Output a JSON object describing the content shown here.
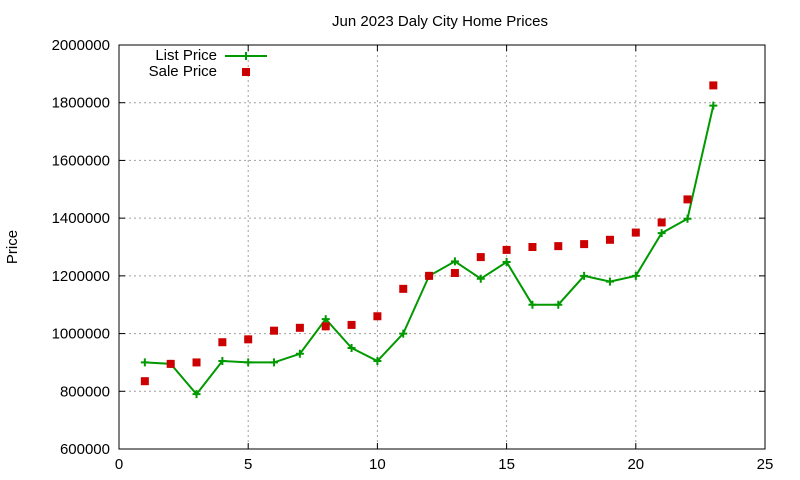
{
  "chart_data": {
    "type": "line",
    "title": "Jun 2023 Daly City Home Prices",
    "xlabel": "",
    "ylabel": "Price",
    "xlim": [
      0,
      25
    ],
    "ylim": [
      600000,
      2000000
    ],
    "xticks": [
      0,
      5,
      10,
      15,
      20,
      25
    ],
    "yticks": [
      600000,
      800000,
      1000000,
      1200000,
      1400000,
      1600000,
      1800000,
      2000000
    ],
    "grid": true,
    "legend_position": "top-left",
    "series": [
      {
        "name": "List Price",
        "style": "line-with-plus-markers",
        "color": "#009900",
        "x": [
          1,
          2,
          3,
          4,
          5,
          6,
          7,
          8,
          9,
          10,
          11,
          12,
          13,
          14,
          15,
          16,
          17,
          18,
          19,
          20,
          21,
          22,
          23
        ],
        "y": [
          900000,
          895000,
          790000,
          905000,
          900000,
          900000,
          930000,
          1050000,
          950000,
          905000,
          1000000,
          1200000,
          1250000,
          1190000,
          1248000,
          1100000,
          1100000,
          1200000,
          1180000,
          1200000,
          1348000,
          1398000,
          1790000
        ]
      },
      {
        "name": "Sale Price",
        "style": "square-markers",
        "color": "#cc0000",
        "x": [
          1,
          2,
          3,
          4,
          5,
          6,
          7,
          8,
          9,
          10,
          11,
          12,
          13,
          14,
          15,
          16,
          17,
          18,
          19,
          20,
          21,
          22,
          23
        ],
        "y": [
          835000,
          895000,
          900000,
          970000,
          980000,
          1010000,
          1020000,
          1025000,
          1030000,
          1060000,
          1155000,
          1200000,
          1210000,
          1265000,
          1290000,
          1300000,
          1303000,
          1310000,
          1325000,
          1350000,
          1385000,
          1465000,
          1860000
        ]
      }
    ]
  }
}
